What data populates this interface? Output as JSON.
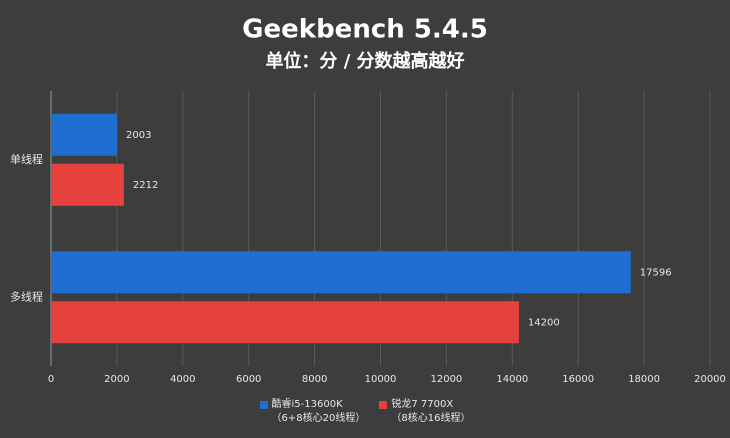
{
  "chart_data": {
    "type": "hbar",
    "title": "Geekbench 5.4.5",
    "subtitle": "单位：分 / 分数越高越好",
    "categories": [
      "单线程",
      "多线程"
    ],
    "series": [
      {
        "name": "酷睿i5-13600K\n（6+8核心20线程）",
        "color": "#1f6fd0",
        "values": [
          2003,
          17596
        ]
      },
      {
        "name": "锐龙7 7700X\n（8核心16线程）",
        "color": "#e5413f",
        "values": [
          2212,
          14200
        ]
      }
    ],
    "xlim": [
      0,
      20000
    ],
    "xticks": [
      0,
      2000,
      4000,
      6000,
      8000,
      10000,
      12000,
      14000,
      16000,
      18000,
      20000
    ],
    "grid": true,
    "legend": "bottom"
  }
}
